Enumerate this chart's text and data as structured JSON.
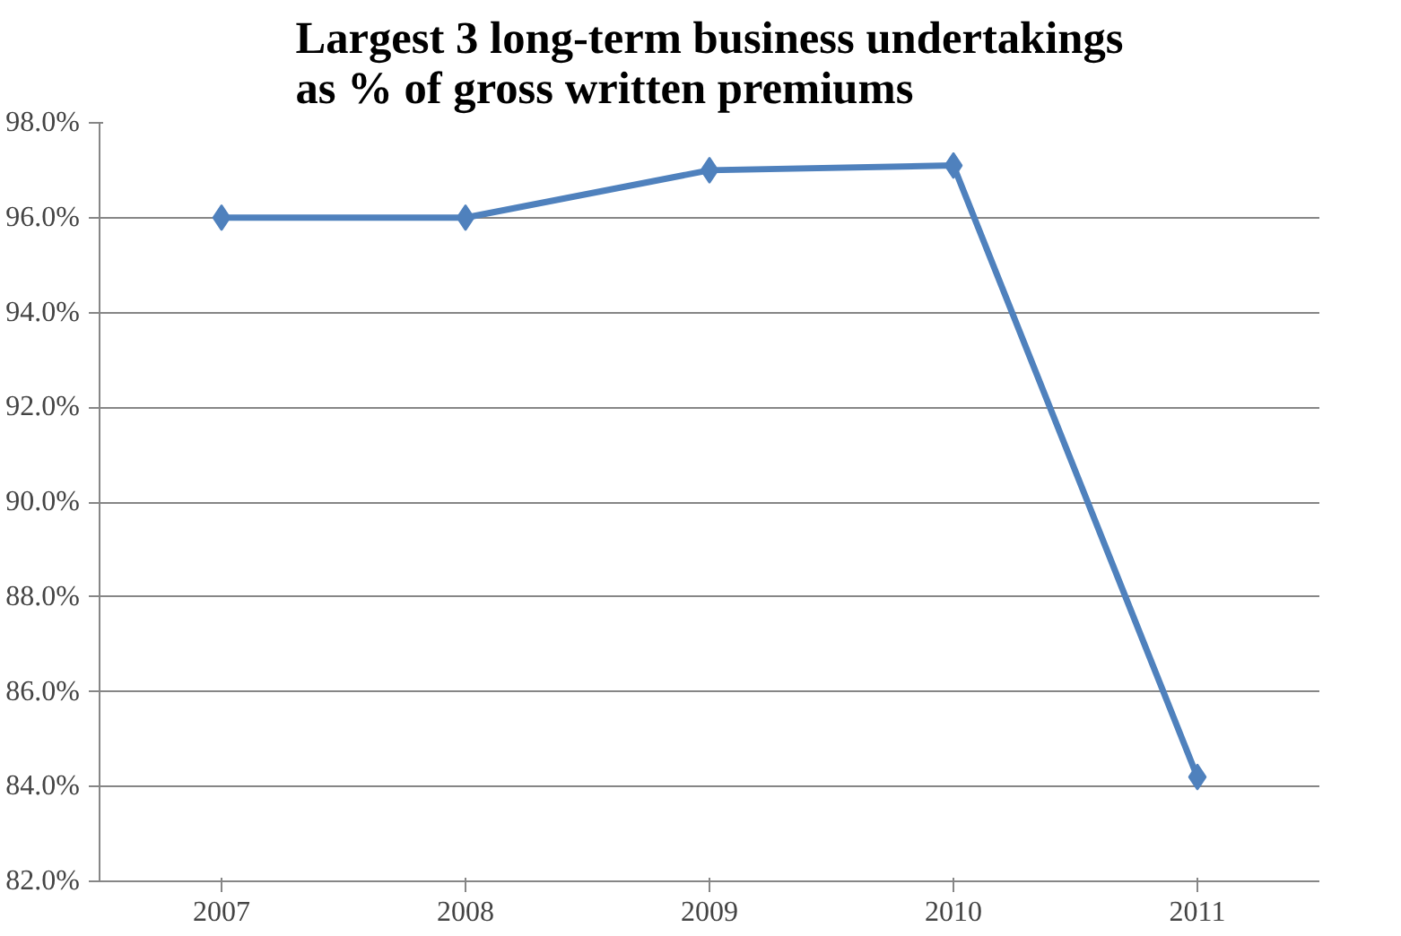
{
  "chart_data": {
    "type": "line",
    "title": "Largest 3 long-term business undertakings\nas %  of gross written premiums",
    "categories": [
      "2007",
      "2008",
      "2009",
      "2010",
      "2011"
    ],
    "series": [
      {
        "color": "#4f81bd",
        "values": [
          96.0,
          96.0,
          97.0,
          97.1,
          84.2
        ]
      }
    ],
    "ylim": [
      82,
      98
    ],
    "yticks": [
      {
        "value": 82,
        "label": "82.0%"
      },
      {
        "value": 84,
        "label": "84.0%"
      },
      {
        "value": 86,
        "label": "86.0%"
      },
      {
        "value": 88,
        "label": "88.0%"
      },
      {
        "value": 90,
        "label": "90.0%"
      },
      {
        "value": 92,
        "label": "92.0%"
      },
      {
        "value": 94,
        "label": "94.0%"
      },
      {
        "value": 96,
        "label": "96.0%"
      },
      {
        "value": 98,
        "label": "98.0%"
      }
    ],
    "grid": "y",
    "marker": "diamond",
    "line_style": "solid"
  }
}
